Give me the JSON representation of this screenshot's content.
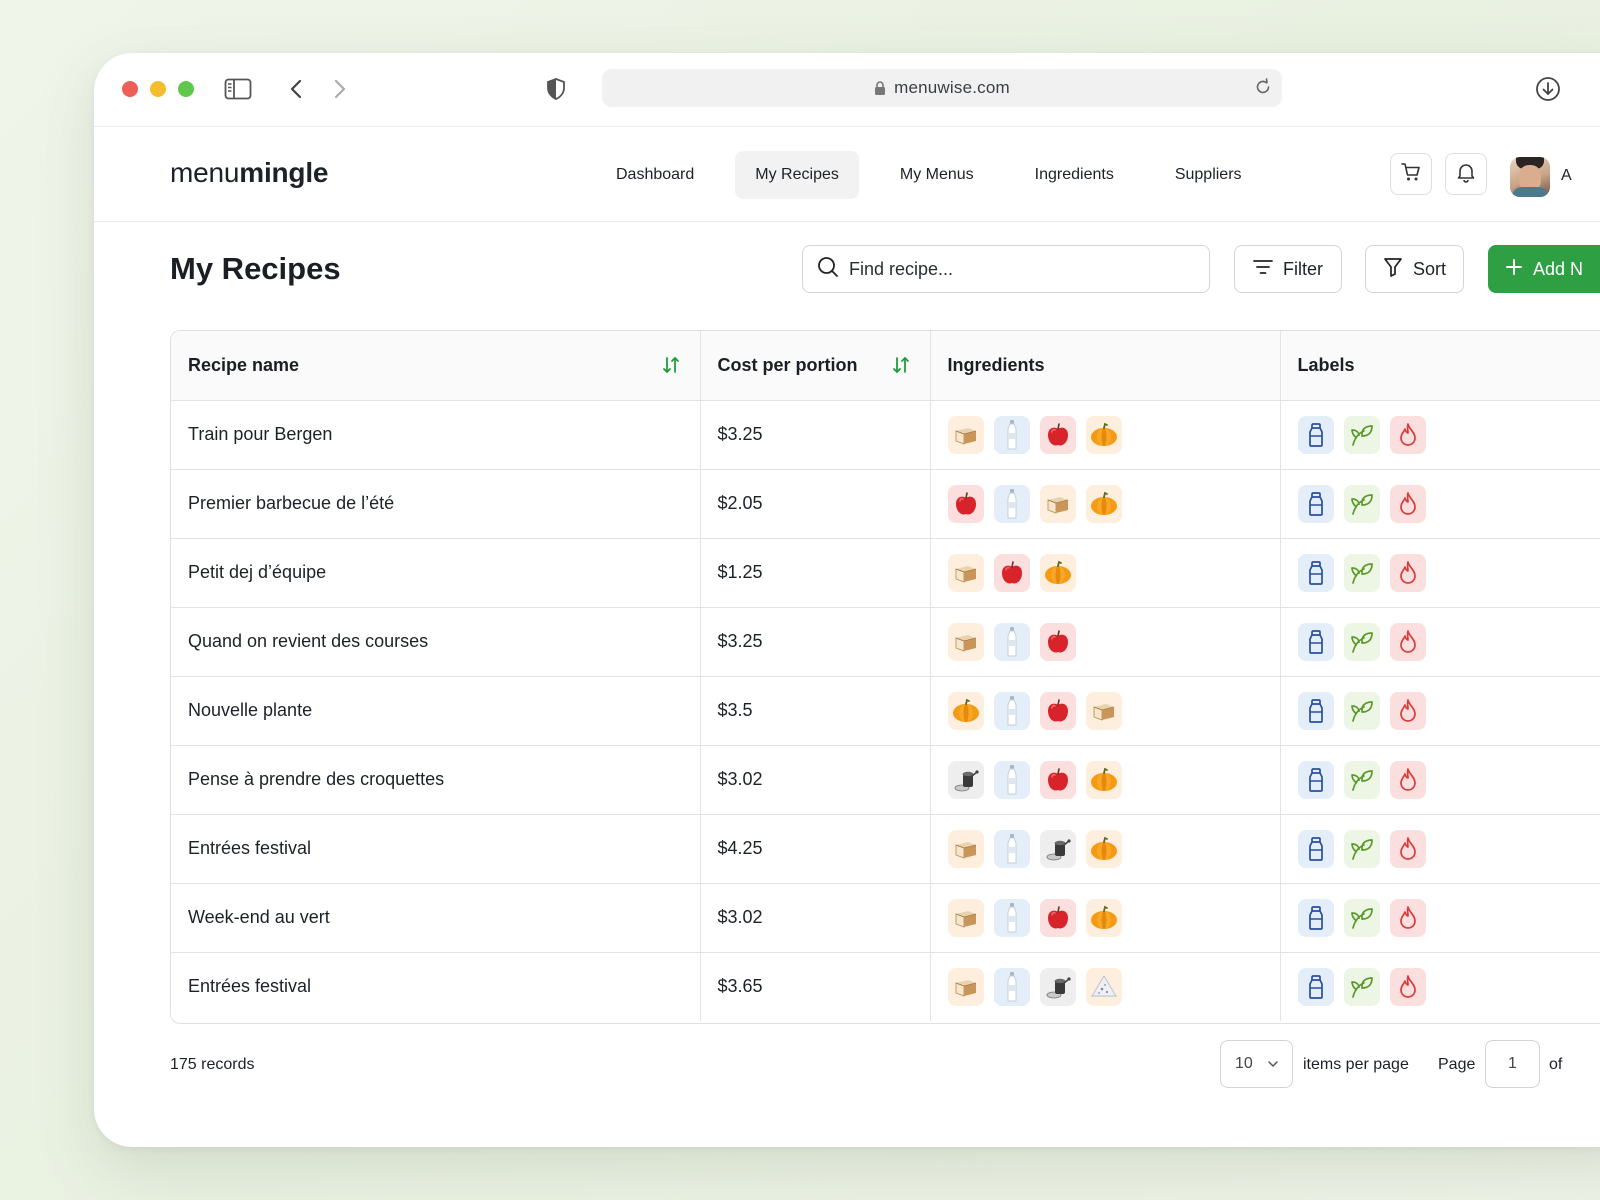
{
  "browser": {
    "url": "menuwise.com"
  },
  "app": {
    "logo_light": "menu",
    "logo_bold": "mingle",
    "nav": [
      {
        "label": "Dashboard"
      },
      {
        "label": "My Recipes",
        "active": true
      },
      {
        "label": "My Menus"
      },
      {
        "label": "Ingredients"
      },
      {
        "label": "Suppliers"
      }
    ],
    "user_initial": "A"
  },
  "page": {
    "title": "My Recipes",
    "search_placeholder": "Find recipe...",
    "filter_label": "Filter",
    "sort_label": "Sort",
    "add_label": "Add N"
  },
  "table": {
    "columns": [
      "Recipe name",
      "Cost per portion",
      "Ingredients",
      "Labels"
    ],
    "rows": [
      {
        "name": "Train pour Bergen",
        "cost": "$3.25",
        "ingredients": [
          "bread",
          "milk",
          "apple",
          "pumpkin"
        ],
        "labels": [
          "bottle",
          "leaf",
          "flame"
        ]
      },
      {
        "name": "Premier barbecue de l’été",
        "cost": "$2.05",
        "ingredients": [
          "apple",
          "milk",
          "bread",
          "pumpkin"
        ],
        "labels": [
          "bottle",
          "leaf",
          "flame"
        ]
      },
      {
        "name": "Petit dej d’équipe",
        "cost": "$1.25",
        "ingredients": [
          "bread",
          "apple",
          "pumpkin"
        ],
        "labels": [
          "bottle",
          "leaf",
          "flame"
        ]
      },
      {
        "name": "Quand on revient des courses",
        "cost": "$3.25",
        "ingredients": [
          "bread",
          "milk",
          "apple"
        ],
        "labels": [
          "bottle",
          "leaf",
          "flame"
        ]
      },
      {
        "name": "Nouvelle plante",
        "cost": "$3.5",
        "ingredients": [
          "pumpkin",
          "milk",
          "apple",
          "bread"
        ],
        "labels": [
          "bottle",
          "leaf",
          "flame"
        ]
      },
      {
        "name": "Pense à prendre des croquettes",
        "cost": "$3.02",
        "ingredients": [
          "grinder",
          "milk",
          "apple",
          "pumpkin"
        ],
        "labels": [
          "bottle",
          "leaf",
          "flame"
        ]
      },
      {
        "name": "Entrées festival",
        "cost": "$4.25",
        "ingredients": [
          "bread",
          "milk",
          "grinder",
          "pumpkin"
        ],
        "labels": [
          "bottle",
          "leaf",
          "flame"
        ]
      },
      {
        "name": "Week-end au vert",
        "cost": "$3.02",
        "ingredients": [
          "bread",
          "milk",
          "apple",
          "pumpkin"
        ],
        "labels": [
          "bottle",
          "leaf",
          "flame"
        ]
      },
      {
        "name": "Entrées festival",
        "cost": "$3.65",
        "ingredients": [
          "bread",
          "milk",
          "grinder",
          "cheese"
        ],
        "labels": [
          "bottle",
          "leaf",
          "flame"
        ]
      }
    ]
  },
  "footer": {
    "records": "175 records",
    "per_page_value": "10",
    "per_page_label": "items per page",
    "page_label": "Page",
    "page_value": "1",
    "of_label": "of"
  },
  "colors": {
    "accent_green": "#2ea043",
    "sort_icon_green": "#1f9d3a",
    "label_blue": "#2a4f9c",
    "label_green": "#5a9a2a",
    "label_red": "#d93a3a"
  }
}
